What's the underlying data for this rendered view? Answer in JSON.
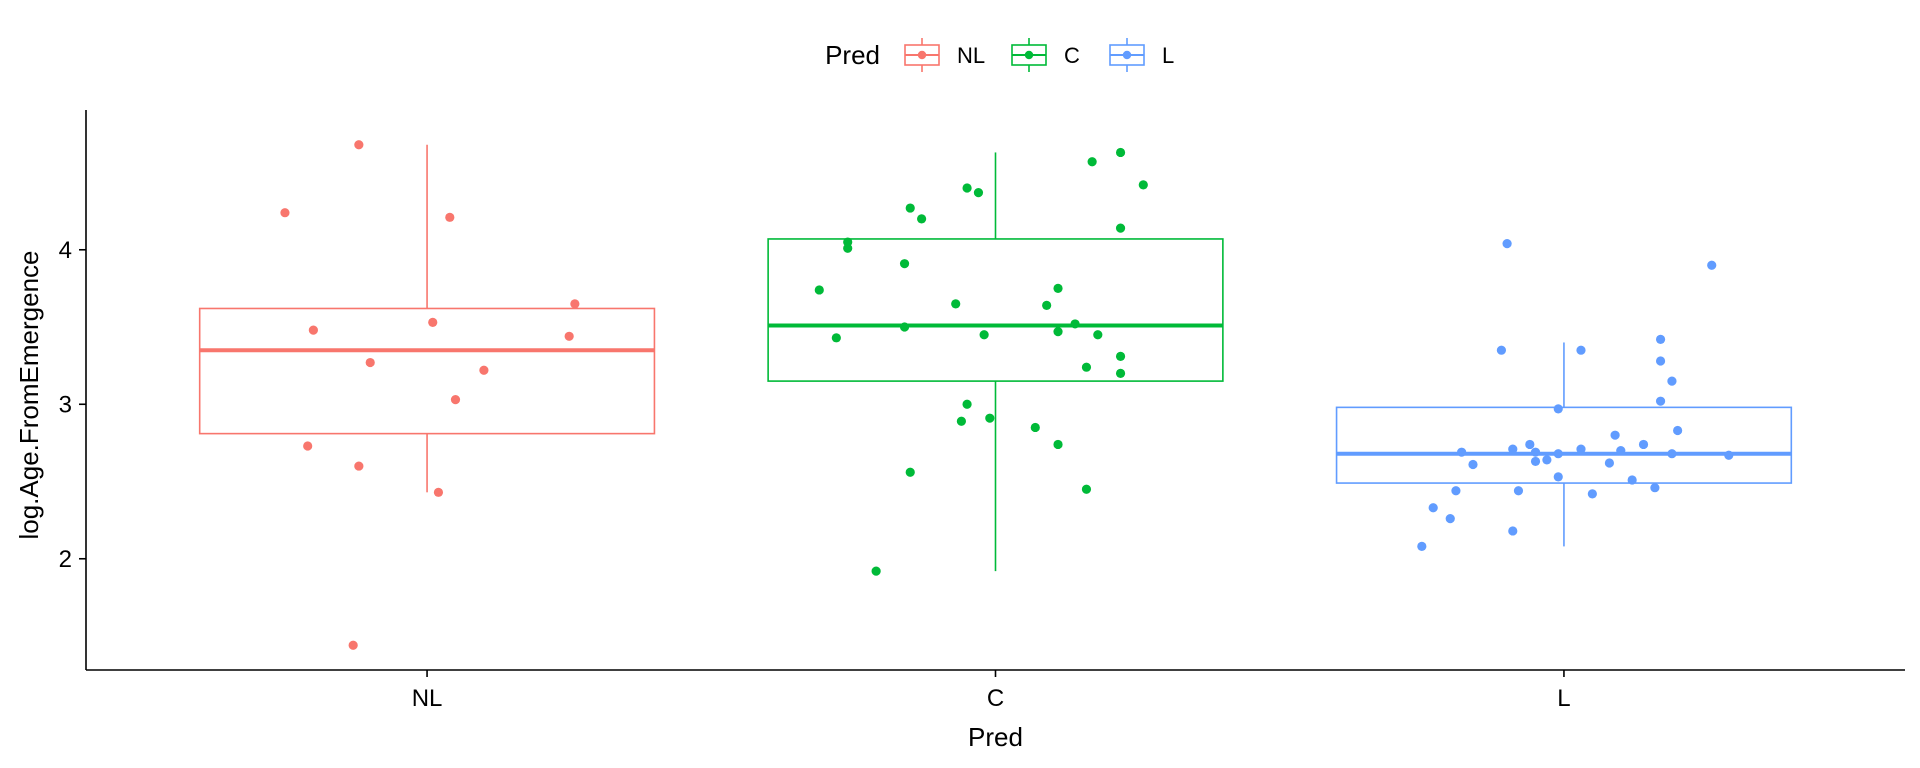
{
  "chart_data": {
    "type": "boxplot",
    "xlabel": "Pred",
    "ylabel": "log.Age.FromEmergence",
    "ylim": [
      1.28,
      4.84
    ],
    "yticks": [
      2,
      3,
      4
    ],
    "categories": [
      "NL",
      "C",
      "L"
    ],
    "legend": {
      "title": "Pred",
      "placement": "top",
      "entries": [
        "NL",
        "C",
        "L"
      ]
    },
    "colors": {
      "NL": "#F8766D",
      "C": "#00BA38",
      "L": "#619CFF"
    },
    "series": [
      {
        "name": "NL",
        "box": {
          "whisker_low": 2.43,
          "q1": 2.81,
          "median": 3.35,
          "q3": 3.62,
          "whisker_high": 4.68
        },
        "points": [
          [
            -0.12,
            4.68
          ],
          [
            -0.25,
            4.24
          ],
          [
            0.04,
            4.21
          ],
          [
            0.26,
            3.65
          ],
          [
            -0.2,
            3.48
          ],
          [
            0.01,
            3.53
          ],
          [
            0.25,
            3.44
          ],
          [
            -0.1,
            3.27
          ],
          [
            0.1,
            3.22
          ],
          [
            0.05,
            3.03
          ],
          [
            -0.21,
            2.73
          ],
          [
            -0.12,
            2.6
          ],
          [
            0.02,
            2.43
          ],
          [
            -0.13,
            1.44
          ]
        ]
      },
      {
        "name": "C",
        "box": {
          "whisker_low": 1.92,
          "q1": 3.15,
          "median": 3.51,
          "q3": 4.07,
          "whisker_high": 4.63
        },
        "points": [
          [
            0.22,
            4.63
          ],
          [
            0.17,
            4.57
          ],
          [
            0.26,
            4.42
          ],
          [
            -0.05,
            4.4
          ],
          [
            -0.03,
            4.37
          ],
          [
            -0.15,
            4.27
          ],
          [
            -0.13,
            4.2
          ],
          [
            0.22,
            4.14
          ],
          [
            -0.26,
            4.05
          ],
          [
            -0.26,
            4.01
          ],
          [
            -0.16,
            3.91
          ],
          [
            -0.31,
            3.74
          ],
          [
            0.11,
            3.75
          ],
          [
            -0.07,
            3.65
          ],
          [
            0.09,
            3.64
          ],
          [
            -0.16,
            3.5
          ],
          [
            0.14,
            3.52
          ],
          [
            0.11,
            3.47
          ],
          [
            -0.02,
            3.45
          ],
          [
            0.18,
            3.45
          ],
          [
            -0.28,
            3.43
          ],
          [
            0.16,
            3.24
          ],
          [
            0.22,
            3.31
          ],
          [
            0.22,
            3.2
          ],
          [
            -0.05,
            3.0
          ],
          [
            -0.06,
            2.89
          ],
          [
            -0.01,
            2.91
          ],
          [
            0.07,
            2.85
          ],
          [
            0.11,
            2.74
          ],
          [
            -0.15,
            2.56
          ],
          [
            0.16,
            2.45
          ],
          [
            -0.21,
            1.92
          ]
        ]
      },
      {
        "name": "L",
        "box": {
          "whisker_low": 2.08,
          "q1": 2.49,
          "median": 2.68,
          "q3": 2.98,
          "whisker_high": 3.4
        },
        "points": [
          [
            -0.1,
            4.04
          ],
          [
            0.26,
            3.9
          ],
          [
            0.17,
            3.42
          ],
          [
            -0.11,
            3.35
          ],
          [
            0.03,
            3.35
          ],
          [
            0.17,
            3.28
          ],
          [
            0.19,
            3.15
          ],
          [
            0.17,
            3.02
          ],
          [
            -0.01,
            2.97
          ],
          [
            0.2,
            2.83
          ],
          [
            0.09,
            2.8
          ],
          [
            0.14,
            2.74
          ],
          [
            -0.06,
            2.74
          ],
          [
            -0.09,
            2.71
          ],
          [
            -0.05,
            2.69
          ],
          [
            0.1,
            2.7
          ],
          [
            0.03,
            2.71
          ],
          [
            -0.01,
            2.68
          ],
          [
            0.19,
            2.68
          ],
          [
            -0.18,
            2.69
          ],
          [
            0.29,
            2.67
          ],
          [
            -0.03,
            2.64
          ],
          [
            -0.05,
            2.63
          ],
          [
            0.08,
            2.62
          ],
          [
            -0.16,
            2.61
          ],
          [
            -0.01,
            2.53
          ],
          [
            0.12,
            2.51
          ],
          [
            0.16,
            2.46
          ],
          [
            -0.08,
            2.44
          ],
          [
            0.05,
            2.42
          ],
          [
            -0.19,
            2.44
          ],
          [
            -0.2,
            2.26
          ],
          [
            -0.09,
            2.18
          ],
          [
            -0.23,
            2.33
          ],
          [
            -0.25,
            2.08
          ]
        ]
      }
    ]
  }
}
